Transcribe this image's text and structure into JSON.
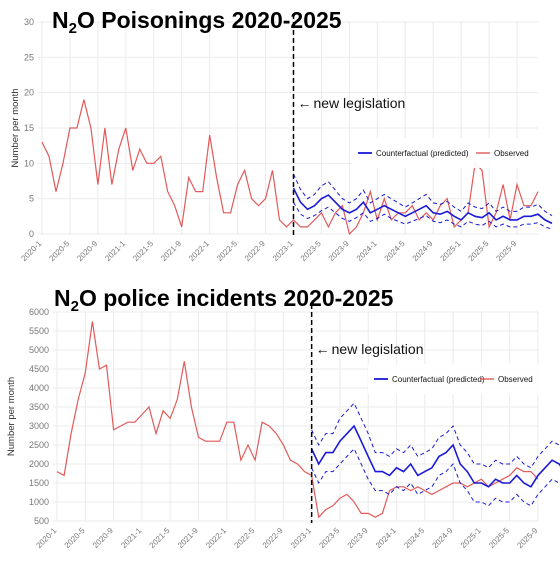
{
  "colors": {
    "counterfactual": "#1a1ad6",
    "observed": "#e25a5a",
    "grid": "#ebebeb",
    "legislation_line": "#000000"
  },
  "x_tick_labels": [
    "2020-1",
    "2020-5",
    "2020-9",
    "2021-1",
    "2021-5",
    "2021-9",
    "2022-1",
    "2022-5",
    "2022-9",
    "2023-1",
    "2023-5",
    "2023-9",
    "2024-1",
    "2024-5",
    "2024-9",
    "2025-1",
    "2025-5",
    "2025-9"
  ],
  "chart_data": [
    {
      "type": "line",
      "title": "N2O Poisonings 2020-2025",
      "title_parts": {
        "base": "N",
        "subscript": "2",
        "rest": "O Poisonings 2020-2025"
      },
      "ylabel": "Number per month",
      "xlabel": "",
      "x_start": "2020-1",
      "ylim": [
        0,
        30
      ],
      "y_ticks": [
        "0",
        "5",
        "10",
        "15",
        "20",
        "25",
        "30"
      ],
      "grid": true,
      "legend": "right",
      "annotation": {
        "text": "new legislation",
        "at": "2023-1"
      },
      "series": [
        {
          "name": "Observed",
          "values": [
            13,
            11,
            6,
            10,
            15,
            15,
            19,
            15,
            7,
            15,
            7,
            12,
            15,
            9,
            12,
            10,
            10,
            11,
            6,
            4,
            1,
            8,
            6,
            6,
            14,
            8,
            3,
            3,
            7,
            9,
            5,
            4,
            5,
            9,
            2,
            1,
            2,
            1,
            1,
            2,
            3,
            1,
            3,
            4,
            0,
            1,
            3,
            6,
            2,
            5,
            2,
            3,
            3,
            4,
            2,
            3,
            2,
            4,
            5,
            1,
            2,
            3,
            10,
            9,
            1,
            3,
            7,
            2,
            7,
            4,
            4,
            6
          ],
          "lower": null,
          "upper": null
        },
        {
          "name": "Counterfactual (predicted)",
          "start": "2023-1",
          "values": [
            6.5,
            4.5,
            3.5,
            4.0,
            5.0,
            5.5,
            4.5,
            3.5,
            3.0,
            3.5,
            4.5,
            3.0,
            3.5,
            4.0,
            3.5,
            3.0,
            2.5,
            3.0,
            3.5,
            4.0,
            3.0,
            2.8,
            3.2,
            2.5,
            2.0,
            3.0,
            2.5,
            2.3,
            3.0,
            2.0,
            2.5,
            2.0,
            2.0,
            2.5,
            2.5,
            2.8,
            2.0,
            1.5
          ],
          "lower": [
            4.5,
            2.8,
            2.2,
            2.6,
            3.3,
            3.8,
            3.0,
            2.2,
            1.8,
            2.3,
            3.0,
            1.8,
            2.2,
            2.8,
            2.2,
            1.8,
            1.4,
            1.8,
            2.2,
            2.6,
            1.8,
            1.6,
            2.0,
            1.4,
            1.0,
            1.8,
            1.4,
            1.2,
            1.8,
            1.0,
            1.4,
            1.0,
            1.0,
            1.4,
            1.4,
            1.6,
            1.0,
            0.7
          ],
          "upper": [
            8.5,
            6.3,
            5.0,
            5.6,
            6.8,
            7.4,
            6.2,
            5.0,
            4.4,
            5.0,
            6.2,
            4.4,
            5.0,
            5.6,
            5.0,
            4.4,
            3.8,
            4.4,
            5.0,
            5.6,
            4.4,
            4.2,
            4.6,
            3.8,
            3.2,
            4.4,
            3.8,
            3.6,
            4.4,
            3.2,
            3.8,
            3.2,
            3.2,
            3.8,
            3.8,
            4.2,
            3.2,
            2.6
          ]
        }
      ]
    },
    {
      "type": "line",
      "title": "N2O police incidents 2020-2025",
      "title_parts": {
        "base": "N",
        "subscript": "2",
        "rest": "O police incidents 2020-2025"
      },
      "ylabel": "Number per month",
      "xlabel": "",
      "x_start": "2020-1",
      "ylim": [
        500,
        6000
      ],
      "y_ticks": [
        "500",
        "1000",
        "1500",
        "2000",
        "2500",
        "3000",
        "3500",
        "4000",
        "4500",
        "5000",
        "5500",
        "6000"
      ],
      "grid": true,
      "legend": "right",
      "annotation": {
        "text": "new legislation",
        "at": "2023-1"
      },
      "series": [
        {
          "name": "Observed",
          "values": [
            1800,
            1700,
            2800,
            3700,
            4400,
            5750,
            4500,
            4600,
            2900,
            3000,
            3100,
            3100,
            3300,
            3500,
            2800,
            3400,
            3200,
            3700,
            4700,
            3500,
            2700,
            2600,
            2600,
            2600,
            3100,
            3100,
            2100,
            2500,
            2100,
            3100,
            3000,
            2800,
            2500,
            2100,
            2000,
            1800,
            1700,
            600,
            800,
            900,
            1100,
            1200,
            1000,
            700,
            700,
            600,
            700,
            1300,
            1400,
            1400,
            1300,
            1400,
            1300,
            1200,
            1300,
            1400,
            1500,
            1500,
            1400,
            1500,
            1600,
            1400,
            1500,
            1600,
            1700,
            1900,
            1800,
            1800,
            1600
          ],
          "lower": null,
          "upper": null
        },
        {
          "name": "Counterfactual (predicted)",
          "start": "2023-1",
          "values": [
            2400,
            2000,
            2300,
            2300,
            2600,
            2800,
            3000,
            2600,
            2200,
            1800,
            1800,
            1700,
            1900,
            1800,
            2000,
            1700,
            1800,
            1900,
            2200,
            2300,
            2500,
            2000,
            1800,
            1500,
            1500,
            1400,
            1600,
            1500,
            1500,
            1700,
            1500,
            1400,
            1700,
            1900,
            2100,
            2000,
            1700,
            1400
          ],
          "lower": [
            1900,
            1500,
            1800,
            1800,
            2000,
            2200,
            2400,
            2000,
            1600,
            1300,
            1300,
            1200,
            1400,
            1300,
            1500,
            1200,
            1300,
            1400,
            1700,
            1800,
            2000,
            1500,
            1300,
            1000,
            1000,
            900,
            1100,
            1000,
            1000,
            1200,
            1000,
            900,
            1200,
            1400,
            1600,
            1500,
            1200,
            900
          ],
          "upper": [
            2900,
            2500,
            2800,
            2800,
            3200,
            3400,
            3600,
            3200,
            2800,
            2300,
            2300,
            2200,
            2400,
            2300,
            2500,
            2200,
            2300,
            2400,
            2700,
            2800,
            3000,
            2500,
            2300,
            2000,
            2000,
            1900,
            2100,
            2000,
            2000,
            2200,
            2000,
            1900,
            2200,
            2400,
            2600,
            2500,
            2200,
            1900
          ]
        }
      ]
    }
  ]
}
